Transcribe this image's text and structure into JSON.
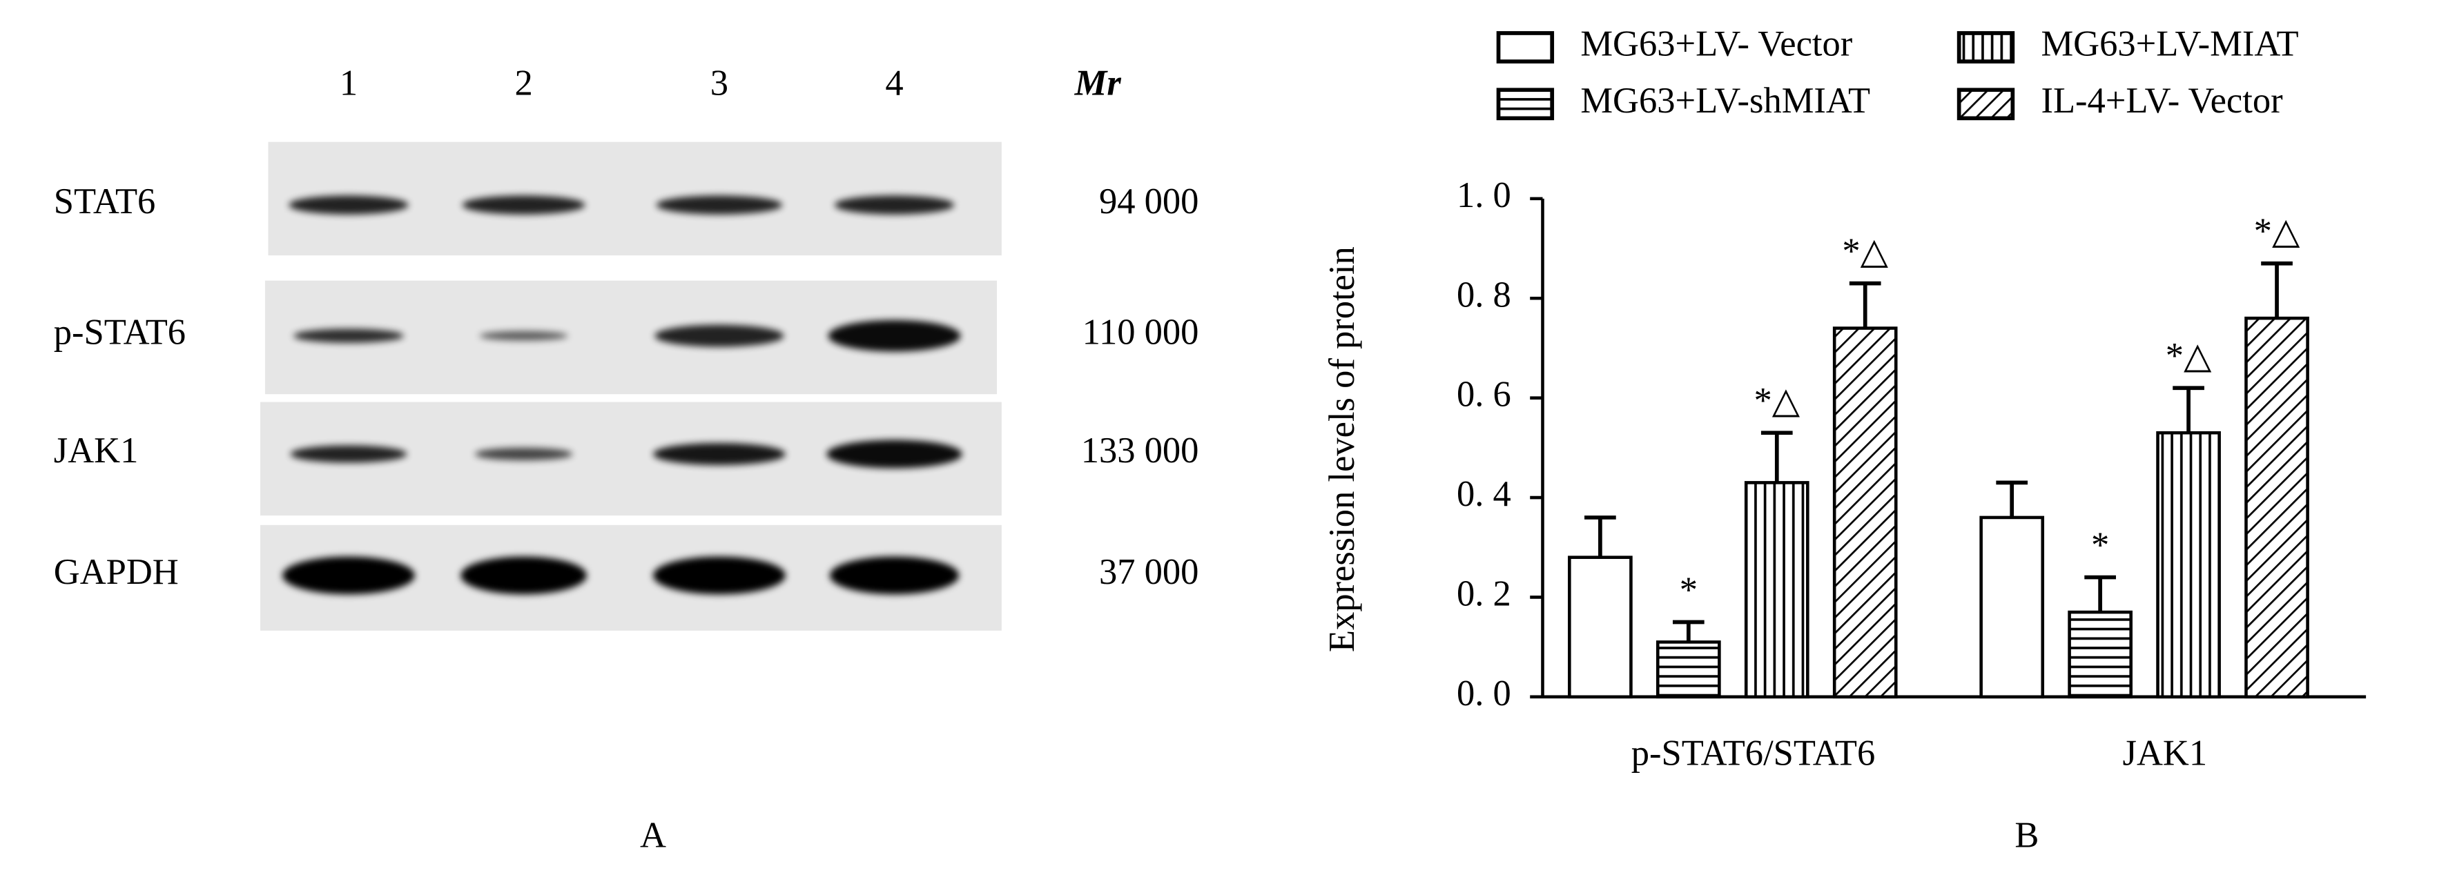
{
  "blot": {
    "lanes": [
      "1",
      "2",
      "3",
      "4"
    ],
    "mr_header": "Mr",
    "rows": [
      {
        "name": "STAT6",
        "mr": "94 000"
      },
      {
        "name": "p-STAT6",
        "mr": "110 000"
      },
      {
        "name": "JAK1",
        "mr": "133 000"
      },
      {
        "name": "GAPDH",
        "mr": "37 000"
      }
    ],
    "panel_label": "A"
  },
  "chart_data": {
    "type": "bar",
    "panel_label": "B",
    "y_label": "Expression levels of protein",
    "categories": [
      "p-STAT6/STAT6",
      "JAK1"
    ],
    "series": [
      {
        "name": "MG63+LV- Vector",
        "color": "#000000",
        "pattern": "none",
        "values": [
          0.28,
          0.36
        ],
        "errors": [
          0.08,
          0.07
        ],
        "annotations": [
          null,
          null
        ]
      },
      {
        "name": "MG63+LV-shMIAT",
        "color": "#000000",
        "pattern": "horizontal",
        "values": [
          0.11,
          0.17
        ],
        "errors": [
          0.04,
          0.07
        ],
        "annotations": [
          "*",
          "*"
        ]
      },
      {
        "name": "MG63+LV-MIAT",
        "color": "#000000",
        "pattern": "vertical",
        "values": [
          0.43,
          0.53
        ],
        "errors": [
          0.1,
          0.09
        ],
        "annotations": [
          "*△",
          "*△"
        ]
      },
      {
        "name": "IL-4+LV- Vector",
        "color": "#000000",
        "pattern": "diagonal",
        "values": [
          0.74,
          0.76
        ],
        "errors": [
          0.09,
          0.11
        ],
        "annotations": [
          "*△",
          "*△"
        ]
      }
    ],
    "ylim": [
      0,
      1.0
    ],
    "yticks": [
      {
        "value": 0,
        "label": "0. 0"
      },
      {
        "value": 0.2,
        "label": "0. 2"
      },
      {
        "value": 0.4,
        "label": "0. 4"
      },
      {
        "value": 0.6,
        "label": "0. 6"
      },
      {
        "value": 0.8,
        "label": "0. 8"
      },
      {
        "value": 1.0,
        "label": "1. 0"
      }
    ]
  }
}
